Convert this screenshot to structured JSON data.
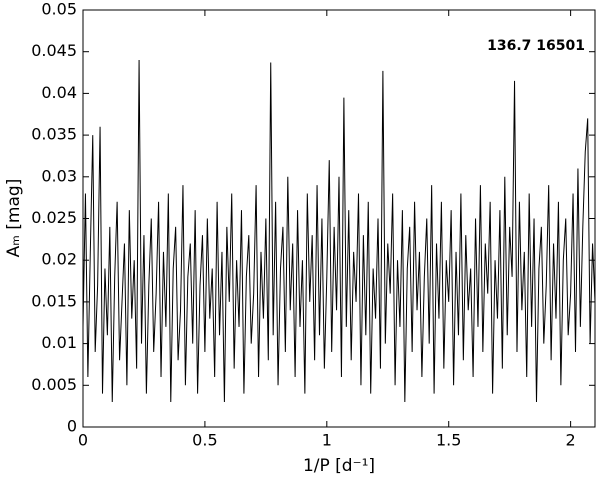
{
  "chart_data": {
    "type": "line",
    "annotation": "136.7 16501",
    "x_label": "1/P  [d⁻¹]",
    "y_label": "Aₘ  [mag]",
    "color": "#000000",
    "xlim": [
      0,
      2.1
    ],
    "xticks": [
      0,
      0.5,
      1,
      1.5,
      2
    ],
    "ylim": [
      0,
      0.05
    ],
    "yticks": [
      0,
      0.005,
      0.01,
      0.015,
      0.02,
      0.025,
      0.03,
      0.035,
      0.04,
      0.045,
      0.05
    ],
    "x": [
      0,
      0.01,
      0.02,
      0.03,
      0.04,
      0.05,
      0.06,
      0.07,
      0.08,
      0.09,
      0.1,
      0.11,
      0.12,
      0.13,
      0.14,
      0.15,
      0.16,
      0.17,
      0.18,
      0.19,
      0.2,
      0.21,
      0.22,
      0.23,
      0.24,
      0.25,
      0.26,
      0.27,
      0.28,
      0.29,
      0.3,
      0.31,
      0.32,
      0.33,
      0.34,
      0.35,
      0.36,
      0.37,
      0.38,
      0.39,
      0.4,
      0.41,
      0.42,
      0.43,
      0.44,
      0.45,
      0.46,
      0.47,
      0.48,
      0.49,
      0.5,
      0.51,
      0.52,
      0.53,
      0.54,
      0.55,
      0.56,
      0.57,
      0.58,
      0.59,
      0.6,
      0.61,
      0.62,
      0.63,
      0.64,
      0.65,
      0.66,
      0.67,
      0.68,
      0.69,
      0.7,
      0.71,
      0.72,
      0.73,
      0.74,
      0.75,
      0.76,
      0.77,
      0.78,
      0.79,
      0.8,
      0.81,
      0.82,
      0.83,
      0.84,
      0.85,
      0.86,
      0.87,
      0.88,
      0.89,
      0.9,
      0.91,
      0.92,
      0.93,
      0.94,
      0.95,
      0.96,
      0.97,
      0.98,
      0.99,
      1,
      1.01,
      1.02,
      1.03,
      1.04,
      1.05,
      1.06,
      1.07,
      1.08,
      1.09,
      1.1,
      1.11,
      1.12,
      1.13,
      1.14,
      1.15,
      1.16,
      1.17,
      1.18,
      1.19,
      1.2,
      1.21,
      1.22,
      1.23,
      1.24,
      1.25,
      1.26,
      1.27,
      1.28,
      1.29,
      1.3,
      1.31,
      1.32,
      1.33,
      1.34,
      1.35,
      1.36,
      1.37,
      1.38,
      1.39,
      1.4,
      1.41,
      1.42,
      1.43,
      1.44,
      1.45,
      1.46,
      1.47,
      1.48,
      1.49,
      1.5,
      1.51,
      1.52,
      1.53,
      1.54,
      1.55,
      1.56,
      1.57,
      1.58,
      1.59,
      1.6,
      1.61,
      1.62,
      1.63,
      1.64,
      1.65,
      1.66,
      1.67,
      1.68,
      1.69,
      1.7,
      1.71,
      1.72,
      1.73,
      1.74,
      1.75,
      1.76,
      1.77,
      1.78,
      1.79,
      1.8,
      1.81,
      1.82,
      1.83,
      1.84,
      1.85,
      1.86,
      1.87,
      1.88,
      1.89,
      1.9,
      1.91,
      1.92,
      1.93,
      1.94,
      1.95,
      1.96,
      1.97,
      1.98,
      1.99,
      2,
      2.01,
      2.02,
      2.03,
      2.04,
      2.05,
      2.06,
      2.07,
      2.08,
      2.09,
      2.1
    ],
    "values": [
      0.012,
      0.028,
      0.006,
      0.021,
      0.035,
      0.009,
      0.017,
      0.036,
      0.004,
      0.019,
      0.011,
      0.024,
      0.003,
      0.018,
      0.027,
      0.008,
      0.015,
      0.022,
      0.005,
      0.026,
      0.013,
      0.02,
      0.007,
      0.044,
      0.01,
      0.023,
      0.004,
      0.017,
      0.025,
      0.009,
      0.016,
      0.027,
      0.006,
      0.021,
      0.012,
      0.028,
      0.003,
      0.019,
      0.024,
      0.008,
      0.014,
      0.029,
      0.005,
      0.018,
      0.022,
      0.01,
      0.026,
      0.004,
      0.017,
      0.023,
      0.009,
      0.025,
      0.013,
      0.019,
      0.006,
      0.027,
      0.011,
      0.021,
      0.003,
      0.024,
      0.015,
      0.028,
      0.007,
      0.02,
      0.012,
      0.026,
      0.004,
      0.018,
      0.023,
      0.01,
      0.016,
      0.029,
      0.006,
      0.021,
      0.013,
      0.025,
      0.008,
      0.0437,
      0.011,
      0.027,
      0.005,
      0.019,
      0.024,
      0.009,
      0.03,
      0.014,
      0.022,
      0.006,
      0.026,
      0.012,
      0.02,
      0.004,
      0.028,
      0.015,
      0.023,
      0.008,
      0.029,
      0.011,
      0.025,
      0.007,
      0.018,
      0.032,
      0.009,
      0.024,
      0.014,
      0.03,
      0.006,
      0.0395,
      0.012,
      0.026,
      0.008,
      0.021,
      0.015,
      0.028,
      0.005,
      0.023,
      0.011,
      0.027,
      0.004,
      0.019,
      0.013,
      0.025,
      0.007,
      0.0427,
      0.01,
      0.022,
      0.016,
      0.028,
      0.005,
      0.02,
      0.012,
      0.026,
      0.003,
      0.019,
      0.024,
      0.009,
      0.027,
      0.014,
      0.021,
      0.006,
      0.018,
      0.025,
      0.01,
      0.029,
      0.004,
      0.022,
      0.013,
      0.027,
      0.007,
      0.02,
      0.015,
      0.026,
      0.005,
      0.021,
      0.011,
      0.028,
      0.008,
      0.023,
      0.014,
      0.019,
      0.006,
      0.025,
      0.012,
      0.029,
      0.009,
      0.022,
      0.016,
      0.027,
      0.004,
      0.02,
      0.013,
      0.026,
      0.007,
      0.03,
      0.011,
      0.024,
      0.018,
      0.0415,
      0.009,
      0.027,
      0.014,
      0.021,
      0.006,
      0.028,
      0.012,
      0.025,
      0.003,
      0.019,
      0.024,
      0.01,
      0.017,
      0.029,
      0.008,
      0.022,
      0.013,
      0.027,
      0.005,
      0.02,
      0.025,
      0.011,
      0.016,
      0.028,
      0.009,
      0.031,
      0.012,
      0.024,
      0.033,
      0.037,
      0.01,
      0.022,
      0.015
    ]
  }
}
